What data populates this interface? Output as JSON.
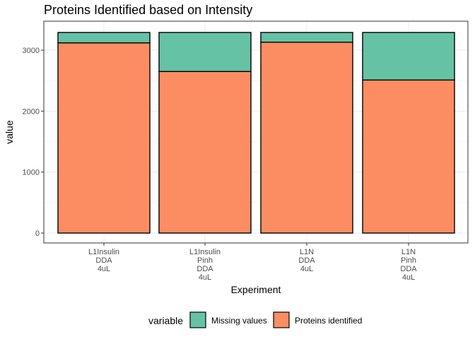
{
  "chart_data": {
    "type": "bar",
    "stacked": true,
    "title": "Proteins Identified based on Intensity",
    "xlabel": "Experiment",
    "ylabel": "value",
    "ylim": [
      0,
      3300
    ],
    "yticks": [
      0,
      1000,
      2000,
      3000
    ],
    "grid": true,
    "legend_position": "bottom",
    "legend_title": "variable",
    "categories": [
      [
        "L1Insulin",
        "DDA",
        "4uL"
      ],
      [
        "L1Insulin",
        "Pinh",
        "DDA",
        "4uL"
      ],
      [
        "L1N",
        "DDA",
        "4uL"
      ],
      [
        "L1N",
        "Pinh",
        "DDA",
        "4uL"
      ]
    ],
    "series": [
      {
        "name": "Proteins identified",
        "color": "#fc8d62",
        "values": [
          3120,
          2650,
          3130,
          2510
        ]
      },
      {
        "name": "Missing values",
        "color": "#66c2a5",
        "values": [
          170,
          640,
          160,
          780
        ]
      }
    ],
    "legend_order": [
      "Missing values",
      "Proteins identified"
    ]
  }
}
